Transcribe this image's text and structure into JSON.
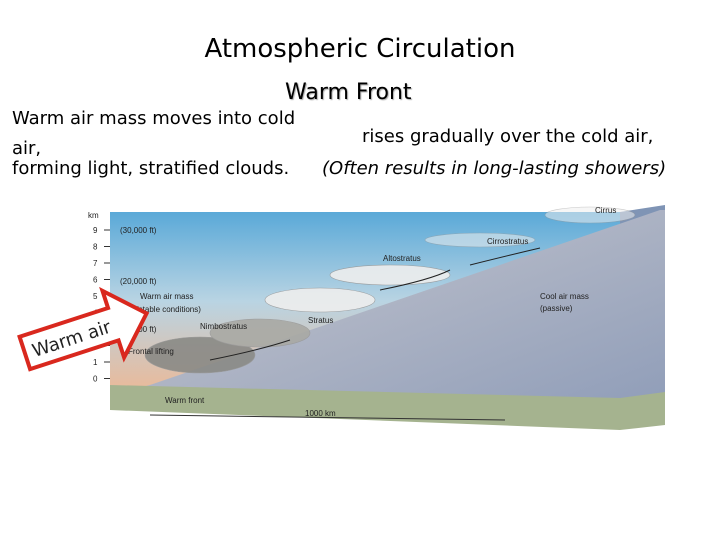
{
  "header": {
    "title": "Atmospheric Circulation",
    "subtitle": "Warm Front"
  },
  "body": {
    "line1": "Warm air mass moves into cold",
    "line1_wrap": "air,",
    "line2": "rises gradually over the cold air,",
    "line3": "forming light, stratified clouds.",
    "line3_italic": "(Often results in long-lasting showers)"
  },
  "diagram": {
    "axis_unit": "km",
    "axis_ticks": [
      9,
      8,
      7,
      6,
      5,
      4,
      3,
      2,
      1,
      0
    ],
    "labels": {
      "ft30": "(30,000 ft)",
      "ft20": "(20,000 ft)",
      "ft10": "(10,000 ft)",
      "warm_mass": "Warm air mass",
      "warm_mass_note": "(stable conditions)",
      "nimbostratus": "Nimbostratus",
      "stratus": "Stratus",
      "lifting": "Frontal lifting",
      "warm_front": "Warm front",
      "distance": "1000 km",
      "cirrus": "Cirrus",
      "cirrostratus": "Cirrostratus",
      "altostratus": "Altostratus",
      "cool_mass": "Cool air mass",
      "cool_mass_note": "(passive)"
    },
    "callout": "Warm air"
  }
}
